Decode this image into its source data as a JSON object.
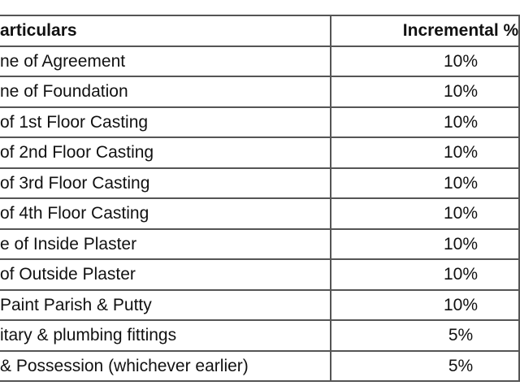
{
  "table": {
    "header": [
      "articulars",
      "Incremental %"
    ],
    "rows": [
      [
        "ne of Agreement",
        "10%"
      ],
      [
        "ne of Foundation",
        "10%"
      ],
      [
        "of 1st Floor Casting",
        "10%"
      ],
      [
        "of 2nd Floor Casting",
        "10%"
      ],
      [
        "of 3rd Floor Casting",
        "10%"
      ],
      [
        "of 4th Floor Casting",
        "10%"
      ],
      [
        "e of Inside Plaster",
        "10%"
      ],
      [
        "of Outside Plaster",
        "10%"
      ],
      [
        "Paint Parish & Putty",
        "10%"
      ],
      [
        "itary & plumbing fittings",
        "5%"
      ],
      [
        "& Possession (whichever earlier)",
        "5%"
      ]
    ]
  }
}
